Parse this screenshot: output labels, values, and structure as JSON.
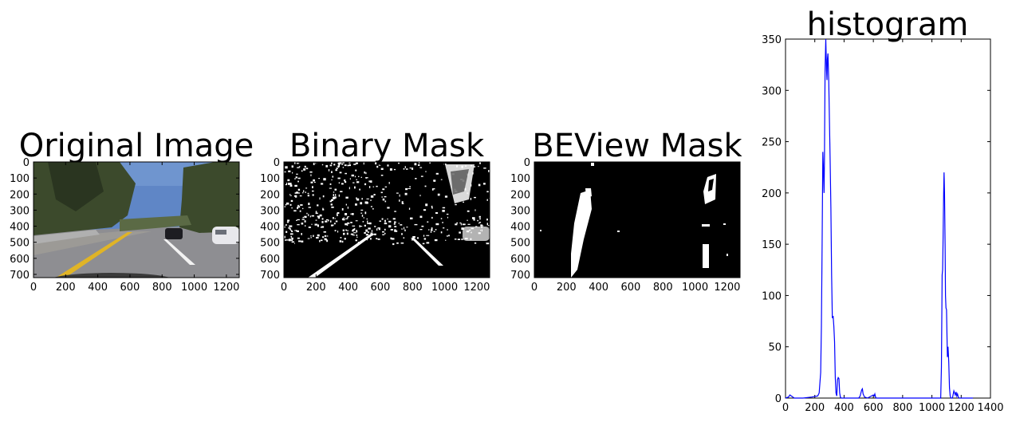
{
  "chart_data": [
    {
      "type": "image",
      "title": "Original Image",
      "image_kind": "road-photo",
      "xlim": [
        0,
        1280
      ],
      "ylim": [
        720,
        0
      ],
      "xticks": [
        0,
        200,
        400,
        600,
        800,
        1000,
        1200
      ],
      "yticks": [
        0,
        100,
        200,
        300,
        400,
        500,
        600,
        700
      ],
      "colors": {
        "sky": "#5f86c6",
        "road": "#8e8e92",
        "trees": "#3c4a2c",
        "lane_yellow": "#e0b426",
        "lane_white": "#f2f2f2"
      }
    },
    {
      "type": "image",
      "title": "Binary Mask",
      "image_kind": "binary-mask",
      "xlim": [
        0,
        1280
      ],
      "ylim": [
        720,
        0
      ],
      "xticks": [
        0,
        200,
        400,
        600,
        800,
        1000,
        1200
      ],
      "yticks": [
        0,
        100,
        200,
        300,
        400,
        500,
        600,
        700
      ],
      "colors": {
        "background": "#000000",
        "foreground": "#ffffff"
      }
    },
    {
      "type": "image",
      "title": "BEView Mask",
      "image_kind": "birds-eye-binary-mask",
      "xlim": [
        0,
        1280
      ],
      "ylim": [
        720,
        0
      ],
      "xticks": [
        0,
        200,
        400,
        600,
        800,
        1000,
        1200
      ],
      "yticks": [
        0,
        100,
        200,
        300,
        400,
        500,
        600,
        700
      ],
      "colors": {
        "background": "#000000",
        "foreground": "#ffffff"
      }
    },
    {
      "type": "line",
      "title": "histogram",
      "xlim": [
        0,
        1400
      ],
      "ylim": [
        0,
        350
      ],
      "xticks": [
        0,
        200,
        400,
        600,
        800,
        1000,
        1200,
        1400
      ],
      "yticks": [
        0,
        50,
        100,
        150,
        200,
        250,
        300,
        350
      ],
      "series": [
        {
          "color": "#0000ff",
          "x": [
            0,
            20,
            30,
            40,
            50,
            60,
            120,
            180,
            220,
            230,
            240,
            245,
            250,
            255,
            260,
            263,
            266,
            270,
            275,
            280,
            283,
            286,
            290,
            295,
            300,
            305,
            310,
            315,
            320,
            325,
            330,
            335,
            340,
            345,
            350,
            355,
            360,
            365,
            370,
            375,
            380,
            385,
            390,
            395,
            400,
            450,
            500,
            510,
            520,
            525,
            530,
            540,
            560,
            600,
            605,
            610,
            615,
            620,
            700,
            800,
            900,
            1000,
            1060,
            1065,
            1070,
            1073,
            1076,
            1080,
            1083,
            1086,
            1090,
            1093,
            1096,
            1100,
            1103,
            1106,
            1110,
            1115,
            1120,
            1125,
            1130,
            1140,
            1150,
            1155,
            1160,
            1165,
            1170,
            1175,
            1180,
            1185,
            1200,
            1280
          ],
          "y": [
            0,
            1,
            3,
            2,
            1,
            0,
            0,
            1,
            2,
            5,
            25,
            70,
            150,
            240,
            220,
            200,
            230,
            320,
            350,
            320,
            310,
            330,
            336,
            310,
            270,
            230,
            185,
            120,
            78,
            80,
            70,
            55,
            20,
            5,
            2,
            18,
            20,
            19,
            5,
            1,
            0,
            0,
            0,
            0,
            0,
            0,
            0,
            2,
            8,
            9,
            4,
            1,
            0,
            3,
            2,
            4,
            1,
            0,
            0,
            0,
            0,
            0,
            0,
            30,
            120,
            125,
            150,
            200,
            220,
            200,
            150,
            100,
            88,
            86,
            60,
            40,
            50,
            35,
            10,
            2,
            0,
            0,
            7,
            5,
            3,
            6,
            2,
            4,
            1,
            0,
            0,
            0
          ]
        }
      ]
    }
  ]
}
